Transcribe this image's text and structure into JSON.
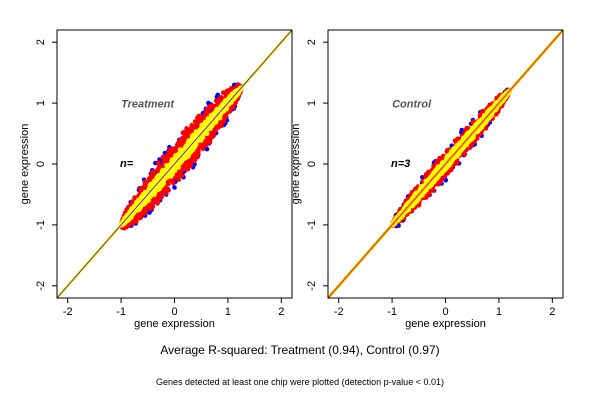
{
  "colors": {
    "background": "#ffffff",
    "points_blue": "#0000ff",
    "points_red": "#ff0000",
    "points_yellow": "#ffff00",
    "treatment_line_outer": "#ffff33",
    "treatment_line_inner": "#6a2c8a",
    "control_line_outer": "#ffcc00",
    "control_line_inner": "#c0392b",
    "panel_label": "#555555"
  },
  "chart_data": [
    {
      "type": "scatter",
      "panel_label": "Treatment",
      "n_label": "n=",
      "xlabel": "gene expression",
      "ylabel": "gene expression",
      "xlim": [
        -2.2,
        2.2
      ],
      "ylim": [
        -2.2,
        2.2
      ],
      "xticks": [
        -2,
        -1,
        0,
        1,
        2
      ],
      "yticks": [
        -2,
        -1,
        0,
        1,
        2
      ],
      "grid": false,
      "reference_line": {
        "slope": 1,
        "intercept": 0
      },
      "point_cloud": {
        "x_range": [
          -1.0,
          1.25
        ],
        "spread_blue": 0.42,
        "spread_red": 0.36,
        "spread_yellow": 0.14,
        "counts": {
          "blue": 700,
          "red": 1900,
          "yellow": 1300
        }
      }
    },
    {
      "type": "scatter",
      "panel_label": "Control",
      "n_label": "n=3",
      "xlabel": "gene expression",
      "ylabel": "gene expression",
      "xlim": [
        -2.2,
        2.2
      ],
      "ylim": [
        -2.2,
        2.2
      ],
      "xticks": [
        -2,
        -1,
        0,
        1,
        2
      ],
      "yticks": [
        -2,
        -1,
        0,
        1,
        2
      ],
      "grid": false,
      "reference_line": {
        "slope": 1,
        "intercept": 0
      },
      "point_cloud": {
        "x_range": [
          -1.0,
          1.2
        ],
        "spread_blue": 0.3,
        "spread_red": 0.22,
        "spread_yellow": 0.1,
        "counts": {
          "blue": 250,
          "red": 1300,
          "yellow": 1700
        }
      }
    }
  ],
  "captions": {
    "main": "Average R-squared: Treatment (0.94), Control (0.97)",
    "sub": "Genes detected at least one chip were plotted (detection p-value < 0.01)"
  }
}
